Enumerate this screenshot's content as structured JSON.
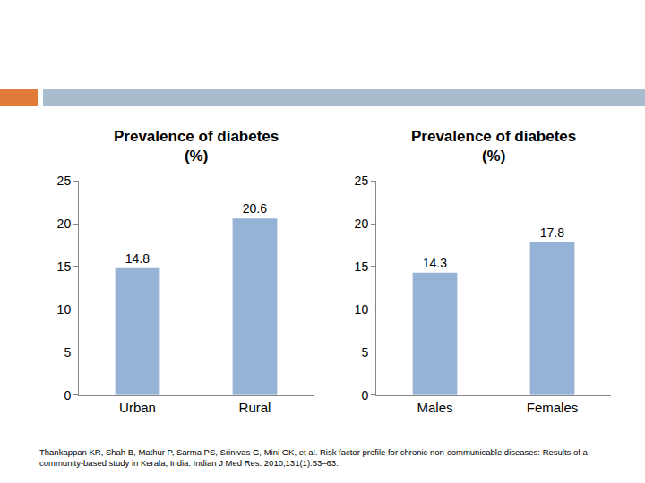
{
  "chart_data": [
    {
      "type": "bar",
      "title": "Prevalence of diabetes (%)",
      "categories": [
        "Urban",
        "Rural"
      ],
      "values": [
        14.8,
        20.6
      ],
      "color": "#95b3d7",
      "ylim": [
        0,
        25
      ],
      "yticks": [
        0,
        5,
        10,
        15,
        20,
        25
      ],
      "grid": false,
      "data_labels": true
    },
    {
      "type": "bar",
      "title": "Prevalence of diabetes (%)",
      "categories": [
        "Males",
        "Females"
      ],
      "values": [
        14.3,
        17.8
      ],
      "color": "#95b3d7",
      "ylim": [
        0,
        25
      ],
      "yticks": [
        0,
        5,
        10,
        15,
        20,
        25
      ],
      "grid": false,
      "data_labels": true
    }
  ],
  "source": "Thankappan KR, Shah B, Mathur P, Sarma PS, Srinivas G, Mini GK, et al. Risk factor profile for chronic non-communicable diseases: Results of a community-based study in Kerala, India. Indian J Med Res. 2010;131(1):53–63."
}
